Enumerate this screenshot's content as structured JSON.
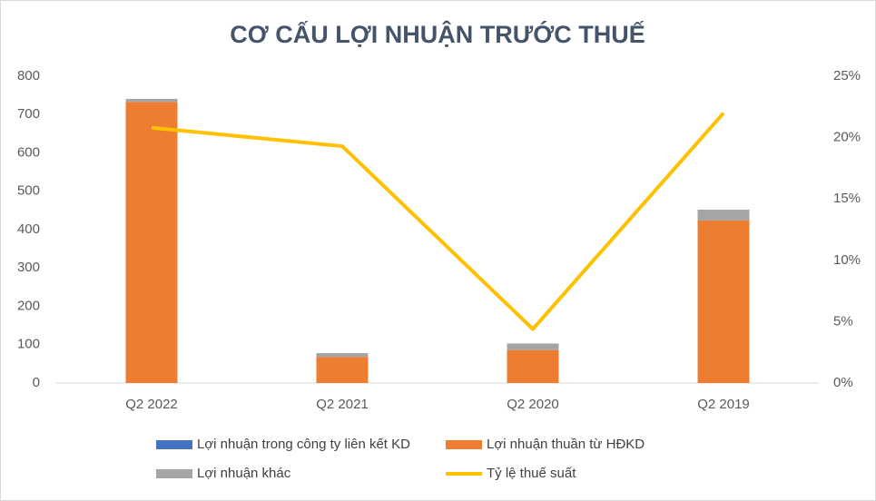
{
  "chart_data": {
    "type": "bar",
    "title": "CƠ CẤU LỢI NHUẬN TRƯỚC THUẾ",
    "categories": [
      "Q2 2022",
      "Q2 2021",
      "Q2 2020",
      "Q2 2019"
    ],
    "stacked": true,
    "series": [
      {
        "name": "Lợi nhuận trong công ty liên kết KD",
        "color": "#4472c4",
        "values": [
          0,
          0,
          0,
          0
        ]
      },
      {
        "name": "Lợi nhuận thuần từ HĐKD",
        "color": "#ed7d31",
        "values": [
          733,
          68,
          86,
          424
        ]
      },
      {
        "name": "Lợi nhuận khác",
        "color": "#a5a5a5",
        "values": [
          8,
          10,
          17,
          28
        ]
      },
      {
        "name": "Tỷ lệ thuế suất",
        "color": "#ffc000",
        "type": "line",
        "axis": "y2",
        "values": [
          20.8,
          19.3,
          4.4,
          22.0
        ]
      }
    ],
    "ylim": [
      0,
      800
    ],
    "yticks": [
      0,
      100,
      200,
      300,
      400,
      500,
      600,
      700,
      800
    ],
    "y2lim": [
      0,
      25
    ],
    "y2ticks": [
      {
        "value": 0,
        "label": "0%"
      },
      {
        "value": 5,
        "label": "5%"
      },
      {
        "value": 10,
        "label": "10%"
      },
      {
        "value": 15,
        "label": "15%"
      },
      {
        "value": 20,
        "label": "20%"
      },
      {
        "value": 25,
        "label": "25%"
      }
    ],
    "legend": "bottom"
  }
}
